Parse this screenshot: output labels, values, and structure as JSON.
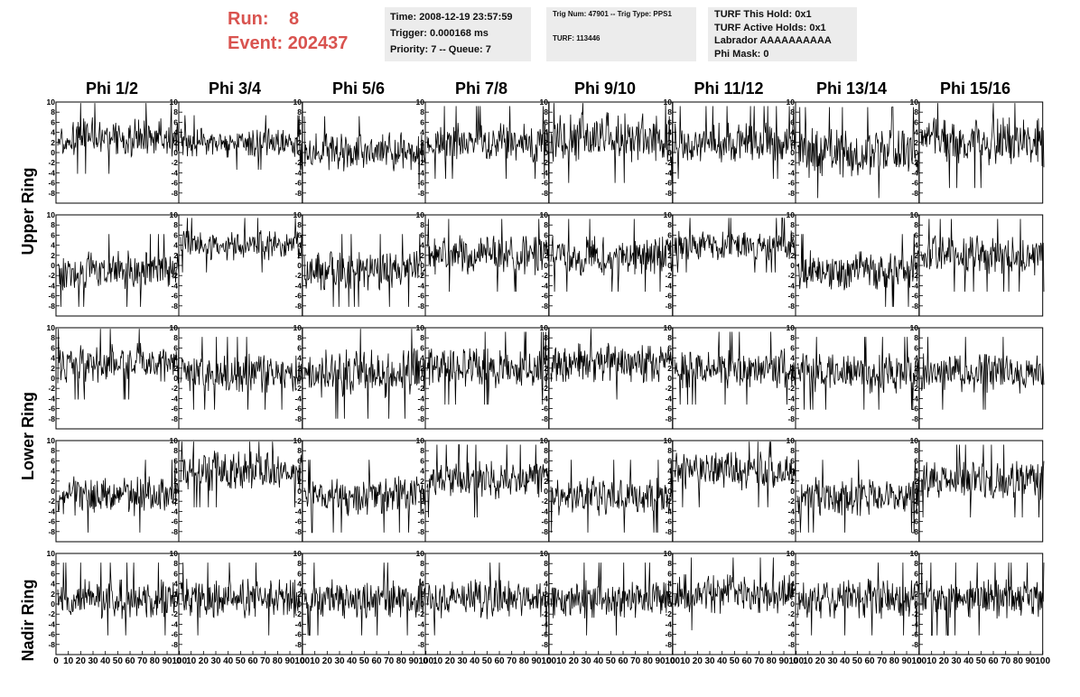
{
  "header": {
    "run_label": "Run:",
    "run_value": "8",
    "event_label": "Event:",
    "event_value": "202437"
  },
  "info_box_1": {
    "time": "Time: 2008-12-19 23:57:59",
    "trigger": "Trigger: 0.000168 ms",
    "priority": "Priority: 7 -- Queue: 7"
  },
  "info_box_2": {
    "trig": "Trig Num: 47901 -- Trig Type: PPS1",
    "turf": "TURF: 113446"
  },
  "info_box_3": {
    "hold": "TURF This Hold: 0x1",
    "active": "TURF Active Holds: 0x1",
    "labrador": "Labrador AAAAAAAAAA",
    "phimask": "Phi Mask: 0"
  },
  "columns": [
    "Phi 1/2",
    "Phi 3/4",
    "Phi 5/6",
    "Phi 7/8",
    "Phi 9/10",
    "Phi 11/12",
    "Phi 13/14",
    "Phi 15/16"
  ],
  "rows": [
    "Upper Ring",
    "Lower Ring",
    "Nadir Ring"
  ],
  "chart_data": {
    "type": "line",
    "panel_grid": {
      "rows": 5,
      "cols": 8
    },
    "xlim": [
      0,
      100
    ],
    "ylim": [
      -10,
      10
    ],
    "x_ticks": [
      0,
      10,
      20,
      30,
      40,
      50,
      60,
      70,
      80,
      90,
      100
    ],
    "y_ticks": [
      -8,
      -6,
      -4,
      -2,
      0,
      2,
      4,
      6,
      8,
      10
    ],
    "grid": false,
    "panel_baselines": [
      [
        3,
        2,
        0,
        2,
        3,
        2,
        0,
        2
      ],
      [
        -1,
        4,
        -1,
        2,
        2,
        4,
        -1,
        2
      ],
      [
        3,
        1,
        1,
        2,
        3,
        2,
        1,
        1
      ],
      [
        -1,
        4,
        -1,
        2,
        -1,
        4,
        -1,
        2
      ],
      [
        1,
        1,
        1,
        1,
        1,
        2,
        1,
        1
      ]
    ],
    "panel_amplitude": [
      [
        4,
        3,
        4,
        4,
        5,
        4,
        5,
        5
      ],
      [
        4,
        3,
        4,
        4,
        4,
        3,
        4,
        4
      ],
      [
        4,
        4,
        5,
        4,
        4,
        4,
        4,
        4
      ],
      [
        4,
        4,
        4,
        4,
        4,
        4,
        4,
        4
      ],
      [
        4,
        4,
        4,
        4,
        4,
        4,
        4,
        4
      ]
    ]
  }
}
